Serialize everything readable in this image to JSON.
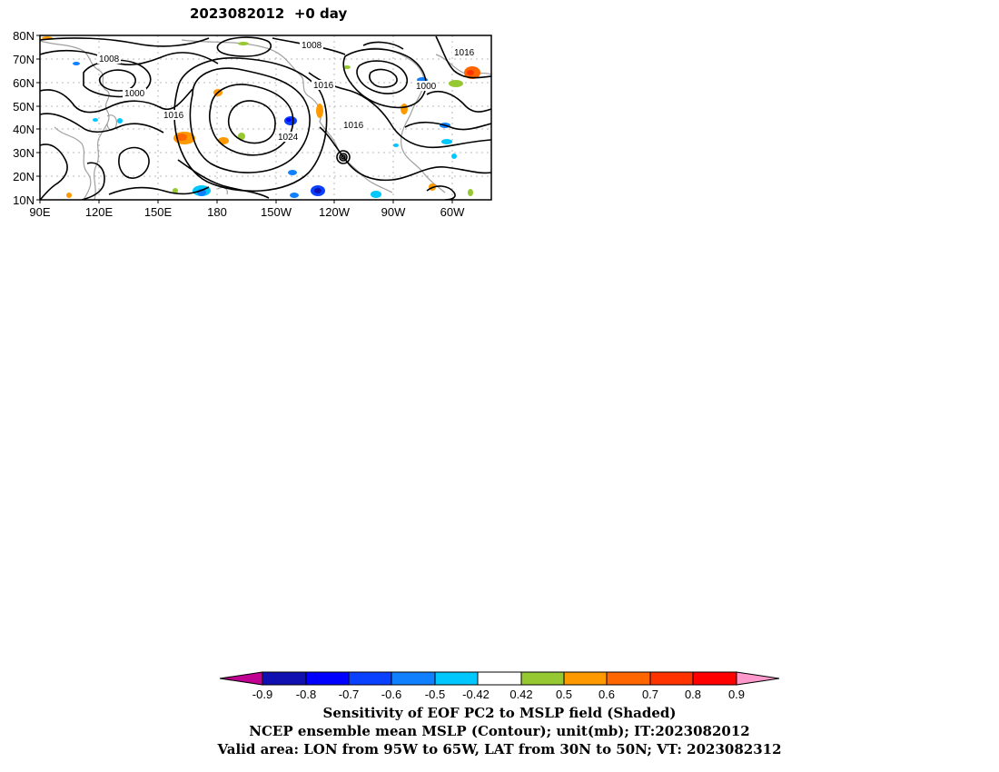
{
  "title": "2023082012  +0 day",
  "map": {
    "lat_labels": [
      "80N",
      "70N",
      "60N",
      "50N",
      "40N",
      "30N",
      "20N",
      "10N"
    ],
    "lon_labels": [
      "90E",
      "120E",
      "150E",
      "180",
      "150W",
      "120W",
      "90W",
      "60W"
    ],
    "lat_range": [
      10,
      80
    ],
    "lon_range": [
      "90E",
      "50W"
    ],
    "contour_labels": [
      "1008",
      "1008",
      "1016",
      "1016",
      "1000",
      "1000",
      "1016",
      "1024",
      "1016"
    ]
  },
  "colors": {
    "contour": "#000000",
    "coastline": "#a0a0a0",
    "shade_levels": [
      "#c00090",
      "#1010b0",
      "#0000ff",
      "#0a40ff",
      "#1080ff",
      "#00c8ff",
      "#ffffff",
      "#96c832",
      "#ff9900",
      "#ff6600",
      "#ff3300",
      "#ff0000",
      "#ff99cc"
    ]
  },
  "colorbar": {
    "ticks": [
      "-0.9",
      "-0.8",
      "-0.7",
      "-0.6",
      "-0.5",
      "-0.42",
      "0.42",
      "0.5",
      "0.6",
      "0.7",
      "0.8",
      "0.9"
    ]
  },
  "captions": {
    "line1": "Sensitivity of EOF PC2 to MSLP field (Shaded)",
    "line2": "NCEP ensemble mean MSLP (Contour); unit(mb); IT:2023082012",
    "line3": "Valid area: LON from 95W to 65W, LAT from 30N to 50N; VT: 2023082312"
  }
}
